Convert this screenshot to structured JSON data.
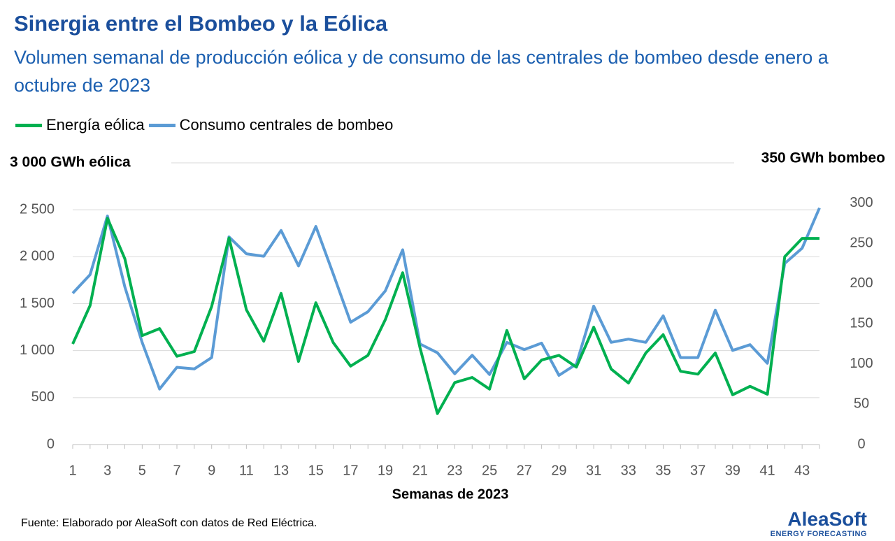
{
  "chart_data": {
    "type": "line",
    "title": "Sinergia entre el Bombeo y la Eólica",
    "subtitle": "Volumen semanal de producción eólica y de consumo de las centrales de bombeo desde enero a octubre de 2023",
    "x_label": "Semanas de 2023",
    "y_label": "3 000 GWh eólica",
    "y2_label": "350 GWh bombeo",
    "x": [
      1,
      2,
      3,
      4,
      5,
      6,
      7,
      8,
      9,
      10,
      11,
      12,
      13,
      14,
      15,
      16,
      17,
      18,
      19,
      20,
      21,
      22,
      23,
      24,
      25,
      26,
      27,
      28,
      29,
      30,
      31,
      32,
      33,
      34,
      35,
      36,
      37,
      38,
      39,
      40,
      41,
      42,
      43,
      44
    ],
    "xlim": [
      1,
      44
    ],
    "xticks": [
      1,
      3,
      5,
      7,
      9,
      11,
      13,
      15,
      17,
      19,
      21,
      23,
      25,
      27,
      29,
      31,
      33,
      35,
      37,
      39,
      41,
      43
    ],
    "ylim": [
      0,
      3000
    ],
    "yticks": [
      0,
      500,
      {
        "value": 1000,
        "label": "1 000"
      },
      {
        "value": 1500,
        "label": "1 500"
      },
      {
        "value": 2000,
        "label": "2 000"
      },
      {
        "value": 2500,
        "label": "2 500"
      }
    ],
    "y2lim": [
      0,
      350
    ],
    "y2ticks": [
      0,
      50,
      100,
      150,
      200,
      250,
      300
    ],
    "grid": true,
    "series": [
      {
        "name": "Energía eólica",
        "color": "#00b050",
        "values": [
          1071,
          1480,
          2410,
          1980,
          1160,
          1235,
          940,
          990,
          1470,
          2200,
          1435,
          1100,
          1610,
          885,
          1510,
          1085,
          835,
          950,
          1330,
          1830,
          1030,
          330,
          660,
          715,
          590,
          1215,
          700,
          900,
          950,
          825,
          1250,
          805,
          655,
          975,
          1170,
          780,
          750,
          975,
          530,
          620,
          535,
          2000,
          2195,
          2195
        ]
      },
      {
        "name": "Consumo centrales de bombeo",
        "color": "#5b9bd5",
        "axis": "y2",
        "values": [
          188,
          211,
          284,
          196,
          127,
          69,
          96,
          94,
          108,
          258,
          237,
          234,
          266,
          222,
          271,
          212,
          152,
          165,
          191,
          242,
          125,
          114,
          88,
          111,
          87,
          127,
          118,
          126,
          86,
          100,
          172,
          127,
          131,
          127,
          160,
          108,
          108,
          167,
          117,
          124,
          101,
          225,
          244,
          294
        ]
      }
    ],
    "source": "Fuente: Elaborado por AleaSoft con datos de Red Eléctrica."
  },
  "logo": {
    "name": "AleaSoft",
    "tagline": "ENERGY FORECASTING"
  }
}
